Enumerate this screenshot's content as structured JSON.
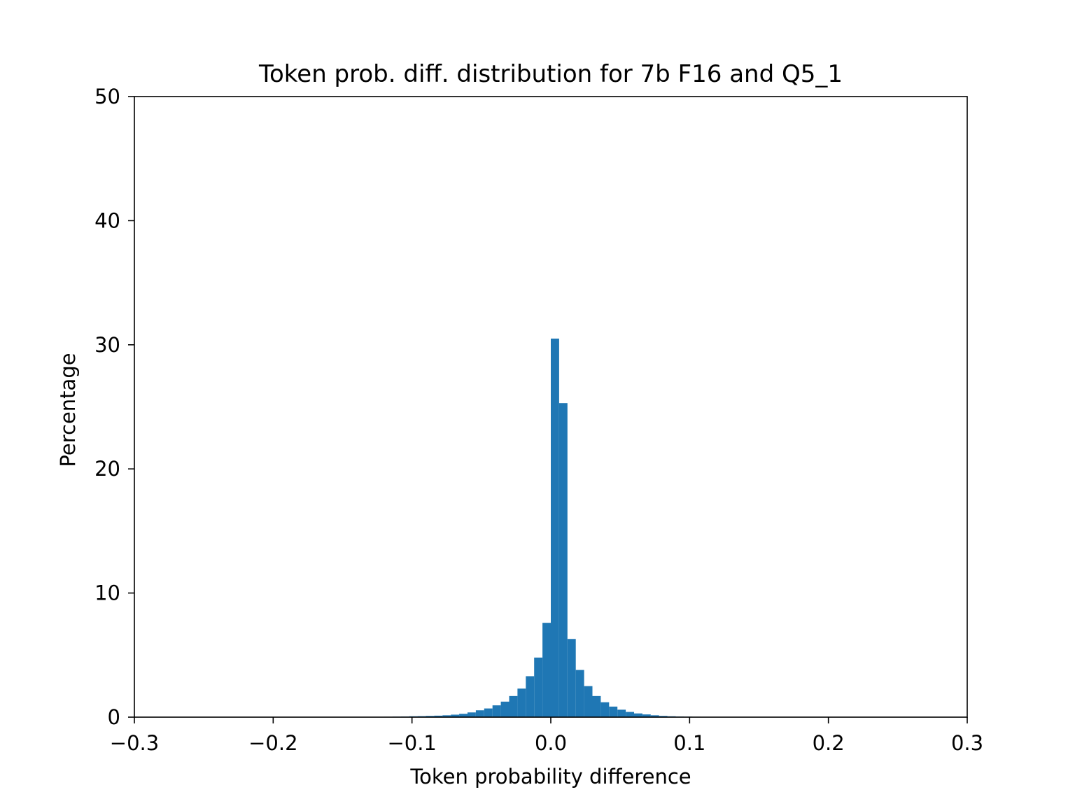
{
  "chart_data": {
    "type": "bar",
    "title": "Token prob. diff. distribution for 7b F16 and Q5_1",
    "xlabel": "Token probability difference",
    "ylabel": "Percentage",
    "xlim": [
      -0.3,
      0.3
    ],
    "ylim": [
      0,
      50
    ],
    "bin_width": 0.006,
    "bins": [
      {
        "x0": -0.12,
        "value": 0.03
      },
      {
        "x0": -0.114,
        "value": 0.04
      },
      {
        "x0": -0.108,
        "value": 0.05
      },
      {
        "x0": -0.102,
        "value": 0.07
      },
      {
        "x0": -0.096,
        "value": 0.08
      },
      {
        "x0": -0.09,
        "value": 0.1
      },
      {
        "x0": -0.084,
        "value": 0.12
      },
      {
        "x0": -0.078,
        "value": 0.15
      },
      {
        "x0": -0.072,
        "value": 0.2
      },
      {
        "x0": -0.066,
        "value": 0.27
      },
      {
        "x0": -0.06,
        "value": 0.38
      },
      {
        "x0": -0.054,
        "value": 0.55
      },
      {
        "x0": -0.048,
        "value": 0.7
      },
      {
        "x0": -0.042,
        "value": 0.95
      },
      {
        "x0": -0.036,
        "value": 1.25
      },
      {
        "x0": -0.03,
        "value": 1.7
      },
      {
        "x0": -0.024,
        "value": 2.3
      },
      {
        "x0": -0.018,
        "value": 3.3
      },
      {
        "x0": -0.012,
        "value": 4.8
      },
      {
        "x0": -0.006,
        "value": 7.6
      },
      {
        "x0": 0.0,
        "value": 30.5
      },
      {
        "x0": 0.006,
        "value": 25.3
      },
      {
        "x0": 0.012,
        "value": 6.3
      },
      {
        "x0": 0.018,
        "value": 3.8
      },
      {
        "x0": 0.024,
        "value": 2.5
      },
      {
        "x0": 0.03,
        "value": 1.7
      },
      {
        "x0": 0.036,
        "value": 1.2
      },
      {
        "x0": 0.042,
        "value": 0.85
      },
      {
        "x0": 0.048,
        "value": 0.6
      },
      {
        "x0": 0.054,
        "value": 0.42
      },
      {
        "x0": 0.06,
        "value": 0.3
      },
      {
        "x0": 0.066,
        "value": 0.22
      },
      {
        "x0": 0.072,
        "value": 0.15
      },
      {
        "x0": 0.078,
        "value": 0.1
      },
      {
        "x0": 0.084,
        "value": 0.07
      },
      {
        "x0": 0.09,
        "value": 0.05
      },
      {
        "x0": 0.096,
        "value": 0.04
      },
      {
        "x0": 0.102,
        "value": 0.03
      }
    ],
    "x_ticks": [
      {
        "value": -0.3,
        "label": "−0.3"
      },
      {
        "value": -0.2,
        "label": "−0.2"
      },
      {
        "value": -0.1,
        "label": "−0.1"
      },
      {
        "value": 0.0,
        "label": "0.0"
      },
      {
        "value": 0.1,
        "label": "0.1"
      },
      {
        "value": 0.2,
        "label": "0.2"
      },
      {
        "value": 0.3,
        "label": "0.3"
      }
    ],
    "y_ticks": [
      {
        "value": 0,
        "label": "0"
      },
      {
        "value": 10,
        "label": "10"
      },
      {
        "value": 20,
        "label": "20"
      },
      {
        "value": 30,
        "label": "30"
      },
      {
        "value": 40,
        "label": "40"
      },
      {
        "value": 50,
        "label": "50"
      }
    ],
    "bar_color": "#1f77b4",
    "grid": false,
    "legend": "none"
  }
}
